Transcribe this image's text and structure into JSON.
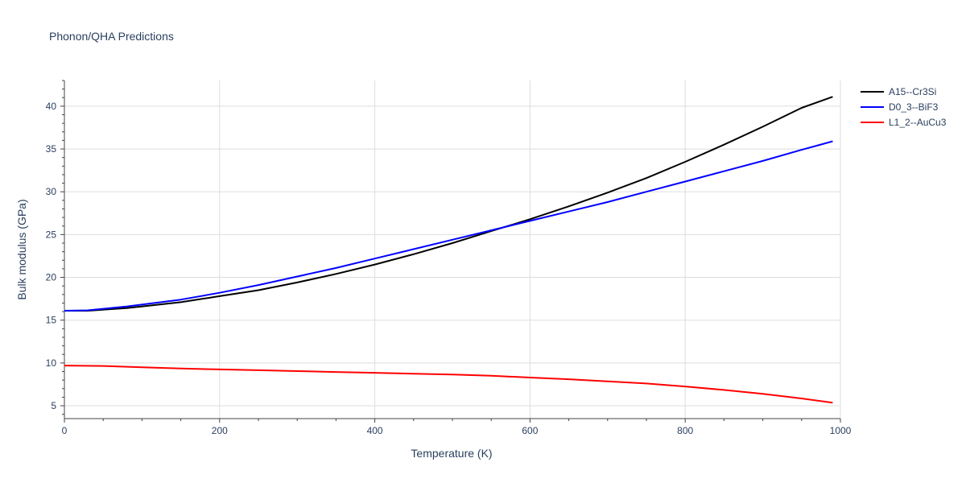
{
  "chart_data": {
    "type": "line",
    "title": "Phonon/QHA Predictions",
    "xlabel": "Temperature (K)",
    "ylabel": "Bulk modulus (GPa)",
    "xlim": [
      0,
      1000
    ],
    "ylim": [
      3.5,
      43
    ],
    "x_ticks": [
      0,
      200,
      400,
      600,
      800,
      1000
    ],
    "y_ticks": [
      5,
      10,
      15,
      20,
      25,
      30,
      35,
      40
    ],
    "x_tick_labels": [
      "0",
      "200",
      "400",
      "600",
      "800",
      "1000"
    ],
    "y_tick_labels": [
      "5",
      "10",
      "15",
      "20",
      "25",
      "30",
      "35",
      "40"
    ],
    "grid": true,
    "legend_position": "top-right",
    "series": [
      {
        "name": "A15--Cr3Si",
        "color": "#000000",
        "x": [
          0,
          30,
          80,
          150,
          200,
          250,
          300,
          350,
          400,
          450,
          500,
          550,
          600,
          650,
          700,
          750,
          800,
          850,
          900,
          950,
          990
        ],
        "y": [
          16.1,
          16.1,
          16.4,
          17.1,
          17.8,
          18.5,
          19.4,
          20.4,
          21.5,
          22.7,
          24.0,
          25.4,
          26.8,
          28.3,
          29.9,
          31.6,
          33.5,
          35.5,
          37.6,
          39.8,
          41.1
        ]
      },
      {
        "name": "D0_3--BiF3",
        "color": "#0000ff",
        "x": [
          0,
          30,
          80,
          150,
          200,
          250,
          300,
          350,
          400,
          450,
          500,
          550,
          600,
          650,
          700,
          750,
          800,
          850,
          900,
          950,
          990
        ],
        "y": [
          16.1,
          16.15,
          16.6,
          17.4,
          18.2,
          19.1,
          20.1,
          21.1,
          22.2,
          23.3,
          24.4,
          25.5,
          26.6,
          27.7,
          28.8,
          30.0,
          31.2,
          32.4,
          33.6,
          34.9,
          35.9
        ]
      },
      {
        "name": "L1_2--AuCu3",
        "color": "#ff0000",
        "x": [
          0,
          50,
          100,
          150,
          200,
          250,
          300,
          350,
          400,
          450,
          500,
          550,
          600,
          650,
          700,
          750,
          800,
          850,
          900,
          950,
          990
        ],
        "y": [
          9.7,
          9.65,
          9.5,
          9.35,
          9.25,
          9.15,
          9.05,
          8.95,
          8.85,
          8.75,
          8.65,
          8.5,
          8.3,
          8.1,
          7.85,
          7.6,
          7.25,
          6.85,
          6.4,
          5.85,
          5.35
        ]
      }
    ]
  }
}
